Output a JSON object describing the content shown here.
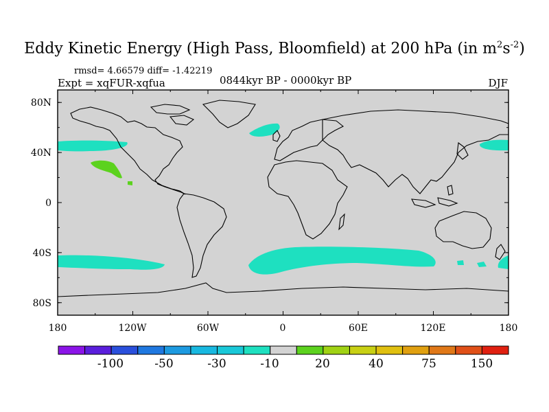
{
  "title": "Eddy Kinetic Energy (High Pass, Bloomfield) at 200 hPa (in m",
  "title_unit_sup1": "2",
  "title_unit_mid": "s",
  "title_unit_sup2": "-2",
  "title_close": ")",
  "stats_label": "rmsd= 4.66579 diff= -1.42219",
  "experiment_label": "Expt = xqFUR-xqfua",
  "period_label": "0844kyr BP - 0000kyr BP",
  "season_label": "DJF",
  "map": {
    "projection": "cylindrical equidistant",
    "lon_range": [
      -180,
      180
    ],
    "lat_range": [
      -90,
      90
    ],
    "background_color": "#d3d3d3",
    "x_tick_labels": [
      "180",
      "120W",
      "60W",
      "0",
      "60E",
      "120E",
      "180"
    ],
    "x_tick_lons": [
      -180,
      -120,
      -60,
      0,
      60,
      120,
      180
    ],
    "y_tick_labels": [
      "80N",
      "40N",
      "0",
      "40S",
      "80S"
    ],
    "y_tick_lats": [
      80,
      40,
      0,
      -40,
      -80
    ]
  },
  "colorbar": {
    "colors": [
      "#8b14e8",
      "#5a1edc",
      "#2a4fdc",
      "#1f78e0",
      "#1d9ae0",
      "#18b8e0",
      "#19c8d8",
      "#1ee0c0",
      "#d3d3d3",
      "#5cd21e",
      "#a0d214",
      "#c8d014",
      "#e0c010",
      "#e0a010",
      "#e07818",
      "#e05018",
      "#e02010"
    ],
    "labels": [
      "-100",
      "-50",
      "-30",
      "-10",
      "20",
      "40",
      "75",
      "150"
    ]
  },
  "field_colors": {
    "negative_band": "#1ee0c0",
    "positive_patch": "#5cd21e"
  }
}
